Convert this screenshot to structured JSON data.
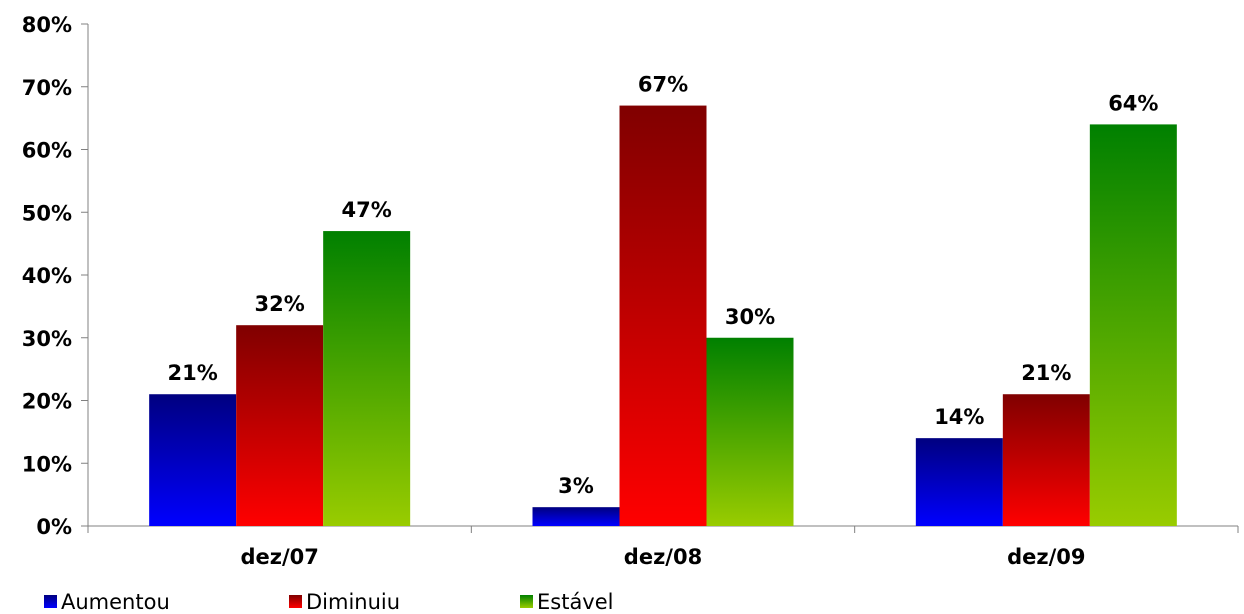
{
  "chart_data": {
    "type": "bar",
    "categories": [
      "dez/07",
      "dez/08",
      "dez/09"
    ],
    "series": [
      {
        "name": "Aumentou",
        "values": [
          21,
          3,
          14
        ],
        "labels": [
          "21%",
          "3%",
          "14%"
        ],
        "color_top": "#000080",
        "color_bottom": "#0000ff"
      },
      {
        "name": "Diminuiu",
        "values": [
          32,
          67,
          21
        ],
        "labels": [
          "32%",
          "67%",
          "21%"
        ],
        "color_top": "#800000",
        "color_bottom": "#ff0000"
      },
      {
        "name": "Estável",
        "values": [
          47,
          30,
          64
        ],
        "labels": [
          "47%",
          "30%",
          "64%"
        ],
        "color_top": "#008000",
        "color_bottom": "#99cc00"
      }
    ],
    "ylim": [
      0,
      80
    ],
    "y_ticks": [
      "0%",
      "10%",
      "20%",
      "30%",
      "40%",
      "50%",
      "60%",
      "70%",
      "80%"
    ],
    "grid": false,
    "legend_position": "bottom-left"
  }
}
